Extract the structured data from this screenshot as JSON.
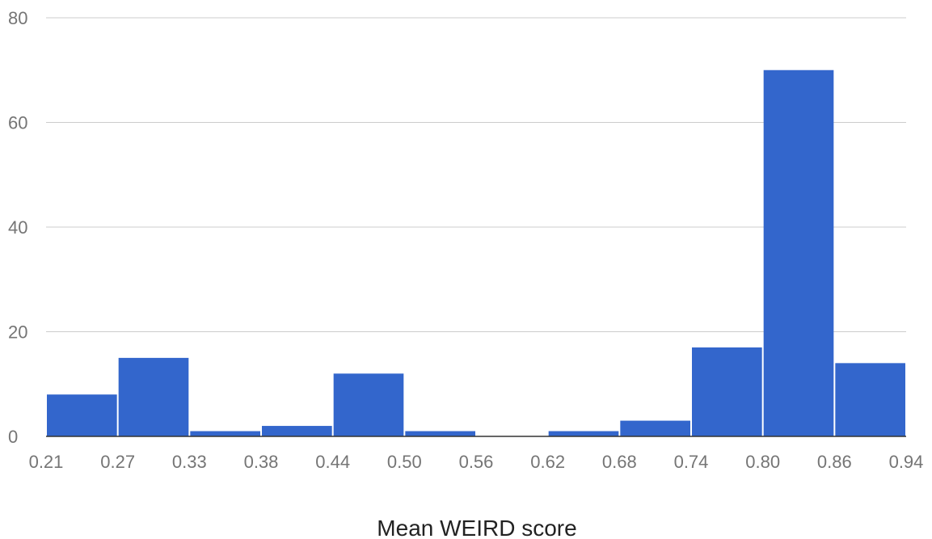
{
  "chart_data": {
    "type": "bar",
    "bin_edges": [
      "0.21",
      "0.27",
      "0.33",
      "0.38",
      "0.44",
      "0.50",
      "0.56",
      "0.62",
      "0.68",
      "0.74",
      "0.80",
      "0.86",
      "0.94"
    ],
    "values": [
      8,
      15,
      1,
      2,
      12,
      1,
      0,
      1,
      3,
      17,
      70,
      14
    ],
    "xlabel": "Mean WEIRD score",
    "ylabel": "",
    "ylim": [
      0,
      80
    ],
    "yticks": [
      "0",
      "20",
      "40",
      "60",
      "80"
    ],
    "grid": true,
    "legend": "none",
    "bar_color": "#3366cc",
    "gridline_color": "#cccccc",
    "baseline_color": "#333333"
  }
}
